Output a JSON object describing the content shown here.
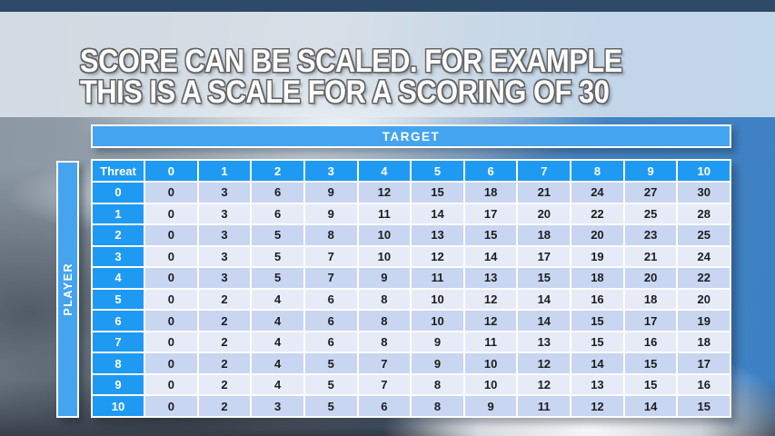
{
  "slide_title": {
    "line1": "SCORE CAN BE SCALED. FOR EXAMPLE",
    "line2": "THIS IS A SCALE FOR A SCORING OF 30"
  },
  "table": {
    "target_label": "TARGET",
    "player_label": "PLAYER",
    "corner_label": "Threat",
    "column_headers": [
      "0",
      "1",
      "2",
      "3",
      "4",
      "5",
      "6",
      "7",
      "8",
      "9",
      "10"
    ],
    "rows": [
      {
        "threat": "0",
        "values": [
          "0",
          "3",
          "6",
          "9",
          "12",
          "15",
          "18",
          "21",
          "24",
          "27",
          "30"
        ]
      },
      {
        "threat": "1",
        "values": [
          "0",
          "3",
          "6",
          "9",
          "11",
          "14",
          "17",
          "20",
          "22",
          "25",
          "28"
        ]
      },
      {
        "threat": "2",
        "values": [
          "0",
          "3",
          "5",
          "8",
          "10",
          "13",
          "15",
          "18",
          "20",
          "23",
          "25"
        ]
      },
      {
        "threat": "3",
        "values": [
          "0",
          "3",
          "5",
          "7",
          "10",
          "12",
          "14",
          "17",
          "19",
          "21",
          "24"
        ]
      },
      {
        "threat": "4",
        "values": [
          "0",
          "3",
          "5",
          "7",
          "9",
          "11",
          "13",
          "15",
          "18",
          "20",
          "22"
        ]
      },
      {
        "threat": "5",
        "values": [
          "0",
          "2",
          "4",
          "6",
          "8",
          "10",
          "12",
          "14",
          "16",
          "18",
          "20"
        ]
      },
      {
        "threat": "6",
        "values": [
          "0",
          "2",
          "4",
          "6",
          "8",
          "10",
          "12",
          "14",
          "15",
          "17",
          "19"
        ]
      },
      {
        "threat": "7",
        "values": [
          "0",
          "2",
          "4",
          "6",
          "8",
          "9",
          "11",
          "13",
          "15",
          "16",
          "18"
        ]
      },
      {
        "threat": "8",
        "values": [
          "0",
          "2",
          "4",
          "5",
          "7",
          "9",
          "10",
          "12",
          "14",
          "15",
          "17"
        ]
      },
      {
        "threat": "9",
        "values": [
          "0",
          "2",
          "4",
          "5",
          "7",
          "8",
          "10",
          "12",
          "13",
          "15",
          "16"
        ]
      },
      {
        "threat": "10",
        "values": [
          "0",
          "2",
          "3",
          "5",
          "6",
          "8",
          "9",
          "11",
          "12",
          "14",
          "15"
        ]
      }
    ]
  },
  "colors": {
    "header_blue": "#1f9af3",
    "bar_blue": "#45a4f0",
    "row_even": "#c9d6f1",
    "row_odd": "#e7ebf8",
    "cell_text": "#1d1d1d",
    "top_strip": "#2d4b68"
  }
}
